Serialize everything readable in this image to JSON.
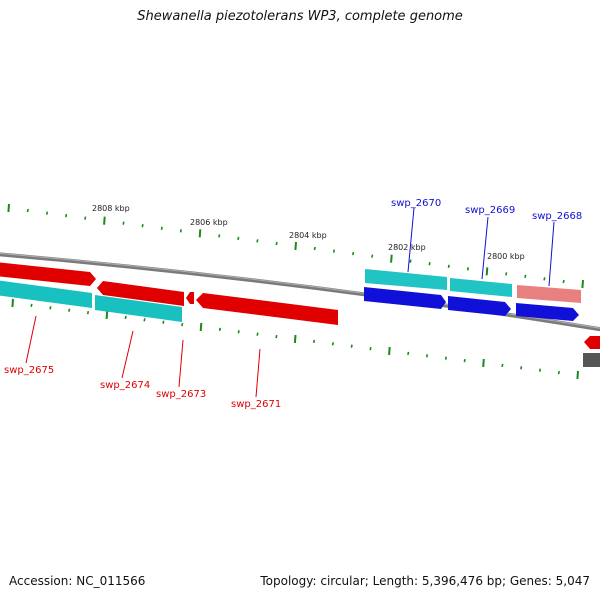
{
  "title": "Shewanella piezotolerans WP3, complete genome",
  "footer": {
    "accession": "Accession: NC_011566",
    "summary": "Topology: circular; Length: 5,396,476 bp; Genes: 5,047"
  },
  "colors": {
    "forward_gene": "#1010d8",
    "forward_gene_light": "#30c8c8",
    "reverse_gene": "#e00000",
    "reverse_gene_light": "#20c0c0",
    "pseudo_gene": "#e87878",
    "backbone": "#808080",
    "tick": "#1a8a1a",
    "label_forward": "#1010d0",
    "label_reverse": "#e00000"
  },
  "tick_labels": [
    "2808 kbp",
    "2806 kbp",
    "2804 kbp",
    "2802 kbp",
    "2800 kbp"
  ],
  "gene_labels": {
    "forward": [
      "swp_2670",
      "swp_2669",
      "swp_2668"
    ],
    "reverse": [
      "swp_2675",
      "swp_2674",
      "swp_2673",
      "swp_2671"
    ]
  }
}
